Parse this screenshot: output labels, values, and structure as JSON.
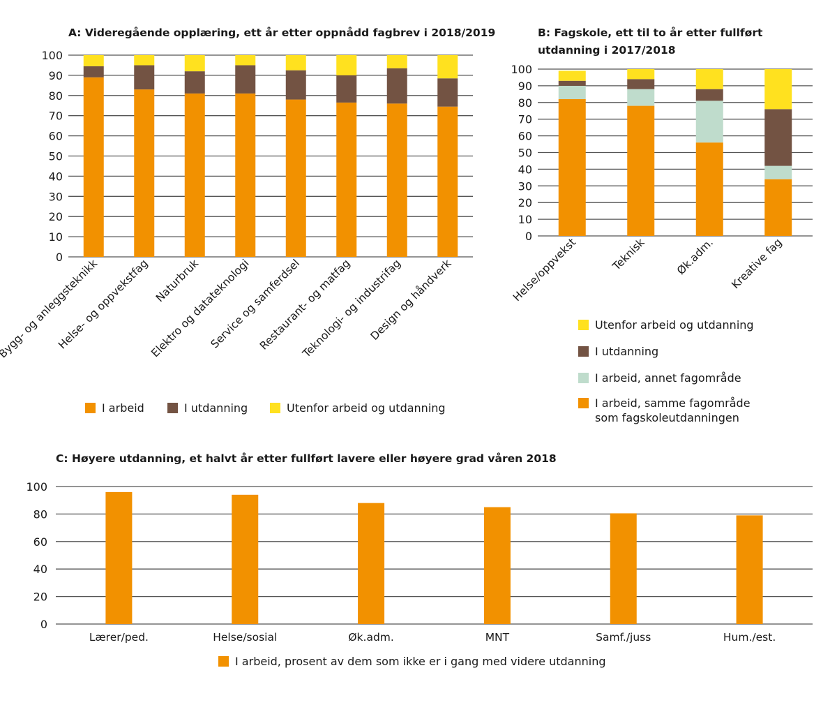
{
  "chart_data": [
    {
      "id": "A",
      "type": "bar",
      "stacked": true,
      "title": "A: Videregående opplæring, ett år etter oppnådd fagbrev i 2018/2019",
      "xlabel": "",
      "ylabel": "",
      "ylim": [
        0,
        100
      ],
      "yticks": [
        0,
        10,
        20,
        30,
        40,
        50,
        60,
        70,
        80,
        90,
        100
      ],
      "grid": true,
      "categories": [
        "Bygg- og anleggsteknikk",
        "Helse- og oppvekstfag",
        "Naturbruk",
        "Elektro og datateknologi",
        "Service og samferdsel",
        "Restaurant- og matfag",
        "Teknologi- og industrifag",
        "Design og håndverk"
      ],
      "series": [
        {
          "name": "I arbeid",
          "color": "#f29100",
          "values": [
            89,
            83,
            81,
            81,
            78,
            76.5,
            76,
            74.5
          ]
        },
        {
          "name": "I utdanning",
          "color": "#735343",
          "values": [
            5.5,
            12,
            11,
            14,
            14.5,
            13.5,
            17.5,
            14
          ]
        },
        {
          "name": "Utenfor arbeid og utdanning",
          "color": "#ffe11f",
          "values": [
            5.5,
            5,
            8,
            5,
            7.5,
            10,
            6.5,
            11.5
          ]
        }
      ],
      "legend_order": [
        "I arbeid",
        "I utdanning",
        "Utenfor arbeid og utdanning"
      ],
      "legend_position": "bottom"
    },
    {
      "id": "B",
      "type": "bar",
      "stacked": true,
      "title": [
        "B: Fagskole, ett til to år etter fullført",
        "utdanning i 2017/2018"
      ],
      "xlabel": "",
      "ylabel": "",
      "ylim": [
        0,
        100
      ],
      "yticks": [
        0,
        10,
        20,
        30,
        40,
        50,
        60,
        70,
        80,
        90,
        100
      ],
      "grid": true,
      "categories": [
        "Helse/oppvekst",
        "Teknisk",
        "Øk.adm.",
        "Kreative fag"
      ],
      "series": [
        {
          "name": "I arbeid, samme fagområde som fagskoleutdanningen",
          "label_lines": [
            "I arbeid, samme fagområde",
            "som fagskoleutdanningen"
          ],
          "color": "#f29100",
          "values": [
            82,
            78,
            56,
            34
          ]
        },
        {
          "name": "I arbeid, annet fagområde",
          "label_lines": [
            "I arbeid, annet fagområde"
          ],
          "color": "#bfdccc",
          "values": [
            8,
            10,
            25,
            8
          ]
        },
        {
          "name": "I utdanning",
          "label_lines": [
            "I utdanning"
          ],
          "color": "#735343",
          "values": [
            3,
            6,
            7,
            34
          ]
        },
        {
          "name": "Utenfor arbeid og utdanning",
          "label_lines": [
            "Utenfor arbeid og utdanning"
          ],
          "color": "#ffe11f",
          "values": [
            6,
            6,
            12,
            24
          ]
        }
      ],
      "legend_order": [
        "Utenfor arbeid og utdanning",
        "I utdanning",
        "I arbeid, annet fagområde",
        "I arbeid, samme fagområde som fagskoleutdanningen"
      ],
      "legend_position": "bottom"
    },
    {
      "id": "C",
      "type": "bar",
      "stacked": false,
      "title": "C: Høyere utdanning, et halvt år etter fullført lavere eller høyere grad våren 2018",
      "xlabel": "",
      "ylabel": "",
      "ylim": [
        0,
        100
      ],
      "yticks": [
        0,
        20,
        40,
        60,
        80,
        100
      ],
      "grid": true,
      "categories": [
        "Lærer/ped.",
        "Helse/sosial",
        "Øk.adm.",
        "MNT",
        "Samf./juss",
        "Hum./est."
      ],
      "series": [
        {
          "name": "I arbeid, prosent av dem som ikke er i gang med videre utdanning",
          "color": "#f29100",
          "values": [
            96,
            94,
            88,
            85,
            80.5,
            79
          ]
        }
      ],
      "legend_position": "bottom"
    }
  ]
}
